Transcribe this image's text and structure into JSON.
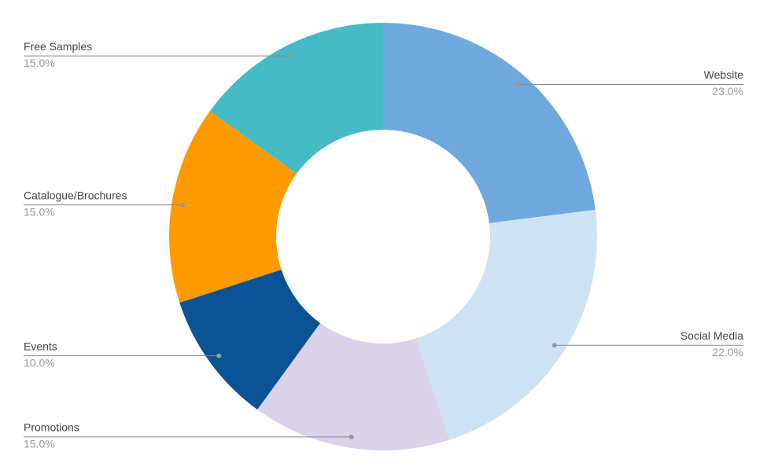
{
  "chart_data": {
    "type": "donut",
    "categories": [
      "Website",
      "Social Media",
      "Promotions",
      "Events",
      "Catalogue/Brochures",
      "Free Samples"
    ],
    "values": [
      23,
      22,
      15,
      10,
      15,
      15
    ],
    "value_labels": [
      "23.0%",
      "22.0%",
      "15.0%",
      "10.0%",
      "15.0%",
      "15.0%"
    ],
    "colors": [
      "#6fa8dc",
      "#cfe2f3",
      "#d9d2e9",
      "#0b5394",
      "#ff9900",
      "#45bbc6"
    ]
  }
}
